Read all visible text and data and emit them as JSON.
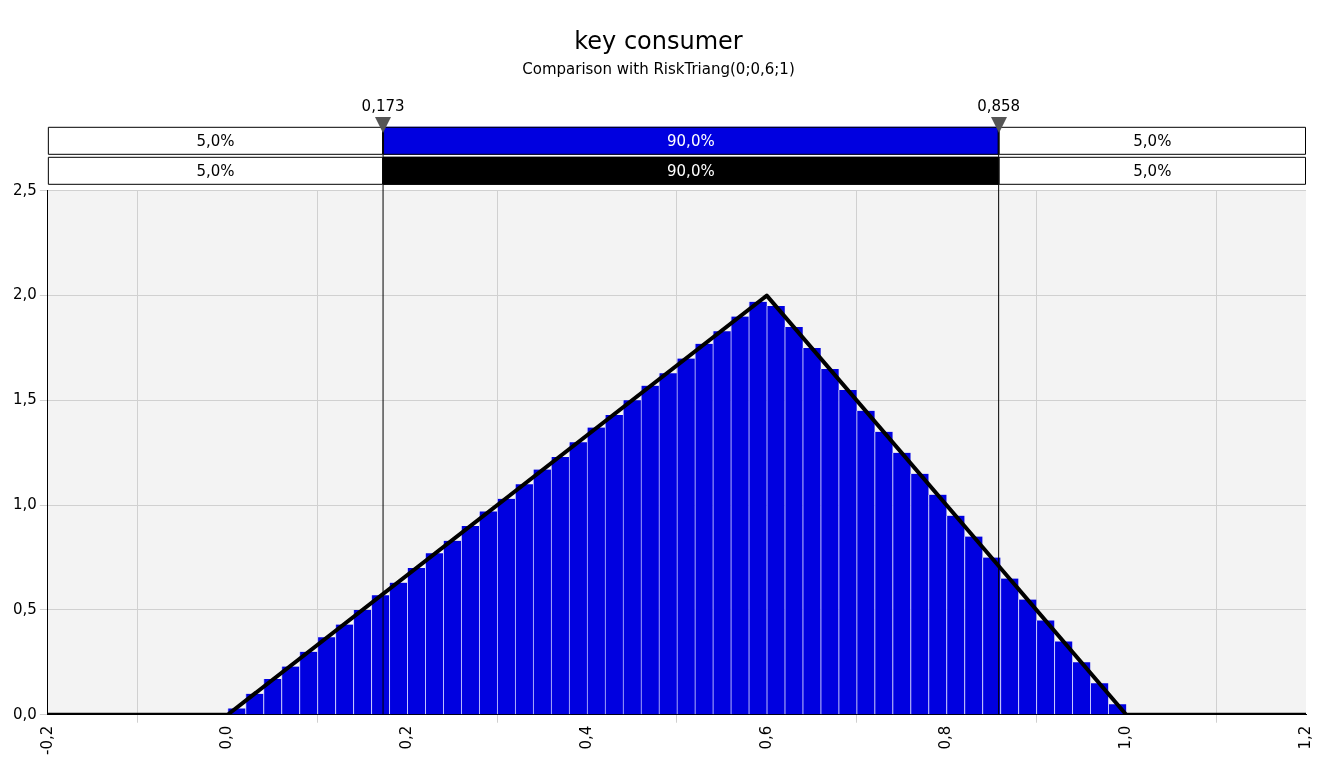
{
  "chart_data": {
    "type": "histogram",
    "title": "key consumer",
    "subtitle": "Comparison with RiskTriang(0;0,6;1)",
    "bins": [
      0,
      0.02,
      0.04,
      0.06,
      0.08,
      0.1,
      0.12,
      0.14,
      0.16,
      0.18,
      0.2,
      0.22,
      0.24,
      0.26,
      0.28,
      0.3,
      0.32,
      0.34,
      0.36,
      0.38,
      0.4,
      0.42,
      0.44,
      0.46,
      0.48,
      0.5,
      0.52,
      0.54,
      0.56,
      0.58,
      0.6,
      0.62,
      0.64,
      0.66,
      0.68,
      0.7,
      0.72,
      0.74,
      0.76,
      0.78,
      0.8,
      0.82,
      0.84,
      0.86,
      0.88,
      0.9,
      0.92,
      0.94,
      0.96,
      0.98,
      1
    ],
    "series": [
      {
        "color": "#0000e0",
        "values": [
          0.03,
          0.1,
          0.17,
          0.23,
          0.3,
          0.37,
          0.43,
          0.5,
          0.57,
          0.63,
          0.7,
          0.77,
          0.83,
          0.9,
          0.97,
          1.03,
          1.1,
          1.17,
          1.23,
          1.3,
          1.37,
          1.43,
          1.5,
          1.57,
          1.63,
          1.7,
          1.77,
          1.83,
          1.9,
          1.97,
          1.95,
          1.85,
          1.75,
          1.65,
          1.55,
          1.45,
          1.35,
          1.25,
          1.15,
          1.05,
          0.95,
          0.85,
          0.75,
          0.65,
          0.55,
          0.45,
          0.35,
          0.25,
          0.15,
          0.05
        ]
      },
      {
        "type": "line",
        "color": "#000000",
        "x": [
          -0.2,
          0,
          0.6,
          1,
          1.2
        ],
        "values": [
          0,
          0,
          2,
          0,
          0
        ]
      }
    ],
    "xlim": [
      -0.2,
      1.2
    ],
    "xticks": [
      {
        "value": -0.2,
        "label": "-0,2"
      },
      {
        "value": 0,
        "label": "0,0"
      },
      {
        "value": 0.2,
        "label": "0,2"
      },
      {
        "value": 0.4,
        "label": "0,4"
      },
      {
        "value": 0.6,
        "label": "0,6"
      },
      {
        "value": 0.8,
        "label": "0,8"
      },
      {
        "value": 1,
        "label": "1,0"
      },
      {
        "value": 1.2,
        "label": "1,2"
      }
    ],
    "ylim": [
      0,
      2.5
    ],
    "yticks": [
      {
        "value": 0,
        "label": "0,0"
      },
      {
        "value": 0.5,
        "label": "0,5"
      },
      {
        "value": 1,
        "label": "1,0"
      },
      {
        "value": 1.5,
        "label": "1,5"
      },
      {
        "value": 2,
        "label": "2,0"
      },
      {
        "value": 2.5,
        "label": "2,5"
      }
    ],
    "ref_lines": [
      {
        "axis": "x",
        "value": 0.173,
        "label": "0,173"
      },
      {
        "axis": "x",
        "value": 0.858,
        "label": "0,858"
      }
    ],
    "annotations": [
      "5,0%",
      "90,0%",
      "5,0%",
      "5,0%",
      "90,0%",
      "5,0%"
    ],
    "grid": true,
    "legend": false,
    "marker": "none",
    "line_style": "solid"
  }
}
